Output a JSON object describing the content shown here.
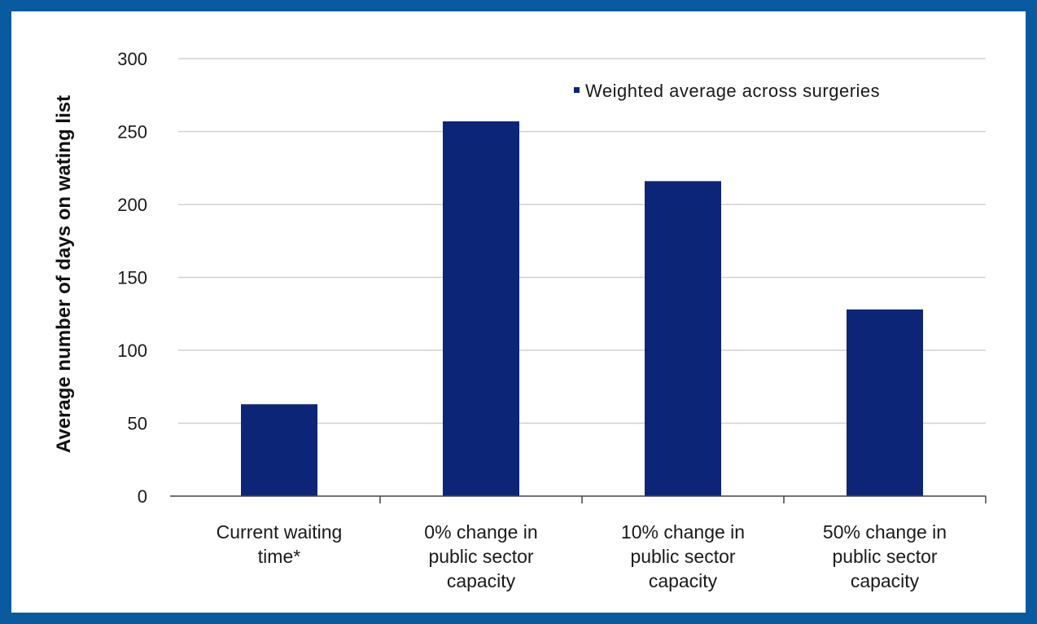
{
  "colors": {
    "frame": "#0a5aa0",
    "bar": "#0c2577",
    "grid": "#d0d0d0",
    "axis": "#444444"
  },
  "chart_data": {
    "type": "bar",
    "categories": [
      [
        "Current waiting",
        "time*"
      ],
      [
        "0% change in",
        "public sector",
        "capacity"
      ],
      [
        "10% change in",
        "public sector",
        "capacity"
      ],
      [
        "50% change in",
        "public sector",
        "capacity"
      ]
    ],
    "series": [
      {
        "name": "Weighted average across surgeries",
        "values": [
          63,
          257,
          216,
          128
        ]
      }
    ],
    "ylabel": "Average number of days on wating list",
    "ylim": [
      0,
      300
    ],
    "yticks": [
      0,
      50,
      100,
      150,
      200,
      250,
      300
    ],
    "grid": true,
    "legend_position": "top-right"
  }
}
